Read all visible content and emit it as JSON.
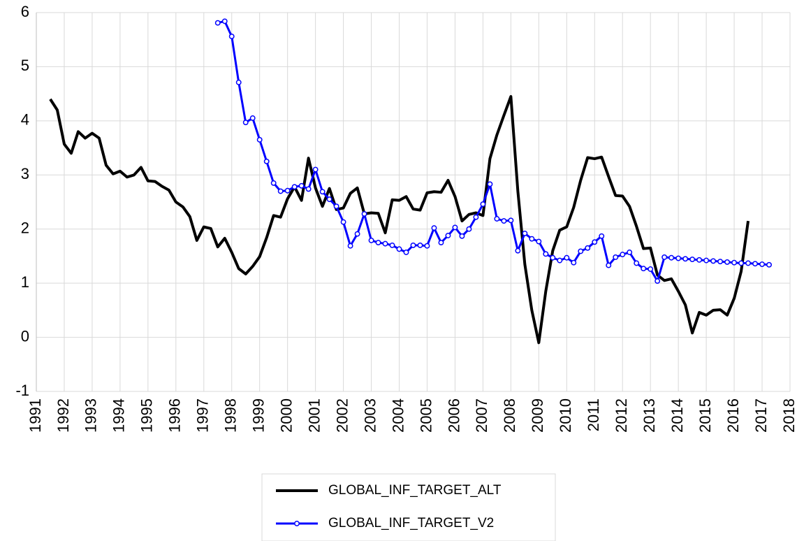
{
  "chart_data": {
    "type": "line",
    "x": [
      1991.5,
      1991.75,
      1992,
      1992.25,
      1992.5,
      1992.75,
      1993,
      1993.25,
      1993.5,
      1993.75,
      1994,
      1994.25,
      1994.5,
      1994.75,
      1995,
      1995.25,
      1995.5,
      1995.75,
      1996,
      1996.25,
      1996.5,
      1996.75,
      1997,
      1997.25,
      1997.5,
      1997.75,
      1998,
      1998.25,
      1998.5,
      1998.75,
      1999,
      1999.25,
      1999.5,
      1999.75,
      2000,
      2000.25,
      2000.5,
      2000.75,
      2001,
      2001.25,
      2001.5,
      2001.75,
      2002,
      2002.25,
      2002.5,
      2002.75,
      2003,
      2003.25,
      2003.5,
      2003.75,
      2004,
      2004.25,
      2004.5,
      2004.75,
      2005,
      2005.25,
      2005.5,
      2005.75,
      2006,
      2006.25,
      2006.5,
      2006.75,
      2007,
      2007.25,
      2007.5,
      2007.75,
      2008,
      2008.25,
      2008.5,
      2008.75,
      2009,
      2009.25,
      2009.5,
      2009.75,
      2010,
      2010.25,
      2010.5,
      2010.75,
      2011,
      2011.25,
      2011.5,
      2011.75,
      2012,
      2012.25,
      2012.5,
      2012.75,
      2013,
      2013.25,
      2013.5,
      2013.75,
      2014,
      2014.25,
      2014.5,
      2014.75,
      2015,
      2015.25,
      2015.5,
      2015.75,
      2016,
      2016.25,
      2016.5,
      2016.75,
      2017,
      2017.25
    ],
    "series": [
      {
        "name": "GLOBAL_INF_TARGET_ALT",
        "color": "#000000",
        "markers": false,
        "values": [
          4.4,
          4.2,
          3.57,
          3.4,
          3.8,
          3.68,
          3.77,
          3.68,
          3.18,
          3.02,
          3.07,
          2.96,
          3.0,
          3.14,
          2.89,
          2.88,
          2.79,
          2.72,
          2.5,
          2.41,
          2.23,
          1.79,
          2.04,
          2.01,
          1.67,
          1.83,
          1.57,
          1.27,
          1.17,
          1.31,
          1.49,
          1.84,
          2.25,
          2.22,
          2.56,
          2.78,
          2.53,
          3.31,
          2.76,
          2.42,
          2.75,
          2.36,
          2.39,
          2.66,
          2.76,
          2.28,
          2.3,
          2.29,
          1.93,
          2.54,
          2.53,
          2.6,
          2.37,
          2.35,
          2.67,
          2.69,
          2.68,
          2.9,
          2.6,
          2.15,
          2.27,
          2.3,
          2.25,
          3.3,
          3.74,
          4.1,
          4.45,
          2.7,
          1.35,
          0.5,
          -0.1,
          0.85,
          1.6,
          1.98,
          2.04,
          2.4,
          2.9,
          3.32,
          3.3,
          3.33,
          2.97,
          2.62,
          2.61,
          2.42,
          2.05,
          1.64,
          1.65,
          1.15,
          1.05,
          1.08,
          0.85,
          0.6,
          0.08,
          0.46,
          0.41,
          0.5,
          0.51,
          0.41,
          0.72,
          1.22,
          2.15,
          null,
          null,
          null
        ]
      },
      {
        "name": "GLOBAL_INF_TARGET_V2",
        "color": "#0000ff",
        "markers": true,
        "values": [
          null,
          null,
          null,
          null,
          null,
          null,
          null,
          null,
          null,
          null,
          null,
          null,
          null,
          null,
          null,
          null,
          null,
          null,
          null,
          null,
          null,
          null,
          null,
          null,
          5.81,
          5.84,
          5.56,
          4.71,
          3.97,
          4.05,
          3.65,
          3.25,
          2.85,
          2.7,
          2.71,
          2.78,
          2.8,
          2.74,
          3.1,
          2.69,
          2.55,
          2.42,
          2.13,
          1.69,
          1.91,
          2.28,
          1.79,
          1.75,
          1.73,
          1.7,
          1.63,
          1.57,
          1.7,
          1.7,
          1.69,
          2.02,
          1.75,
          1.88,
          2.03,
          1.87,
          2.0,
          2.22,
          2.46,
          2.83,
          2.19,
          2.15,
          2.16,
          1.6,
          1.92,
          1.82,
          1.77,
          1.54,
          1.47,
          1.42,
          1.47,
          1.38,
          1.59,
          1.65,
          1.76,
          1.87,
          1.33,
          1.48,
          1.53,
          1.57,
          1.37,
          1.27,
          1.26,
          1.04,
          1.48,
          1.47,
          1.46,
          1.45,
          1.44,
          1.43,
          1.42,
          1.41,
          1.4,
          1.39,
          1.38,
          1.37,
          1.37,
          1.36,
          1.35,
          1.34
        ]
      }
    ],
    "xlim": [
      1991,
      2018
    ],
    "xticks": [
      1991,
      1992,
      1993,
      1994,
      1995,
      1996,
      1997,
      1998,
      1999,
      2000,
      2001,
      2002,
      2003,
      2004,
      2005,
      2006,
      2007,
      2008,
      2009,
      2010,
      2011,
      2012,
      2013,
      2014,
      2015,
      2016,
      2017,
      2018
    ],
    "ylim": [
      -1,
      6
    ],
    "yticks": [
      -1,
      0,
      1,
      2,
      3,
      4,
      5,
      6
    ],
    "grid": true,
    "legend": "bottom"
  }
}
